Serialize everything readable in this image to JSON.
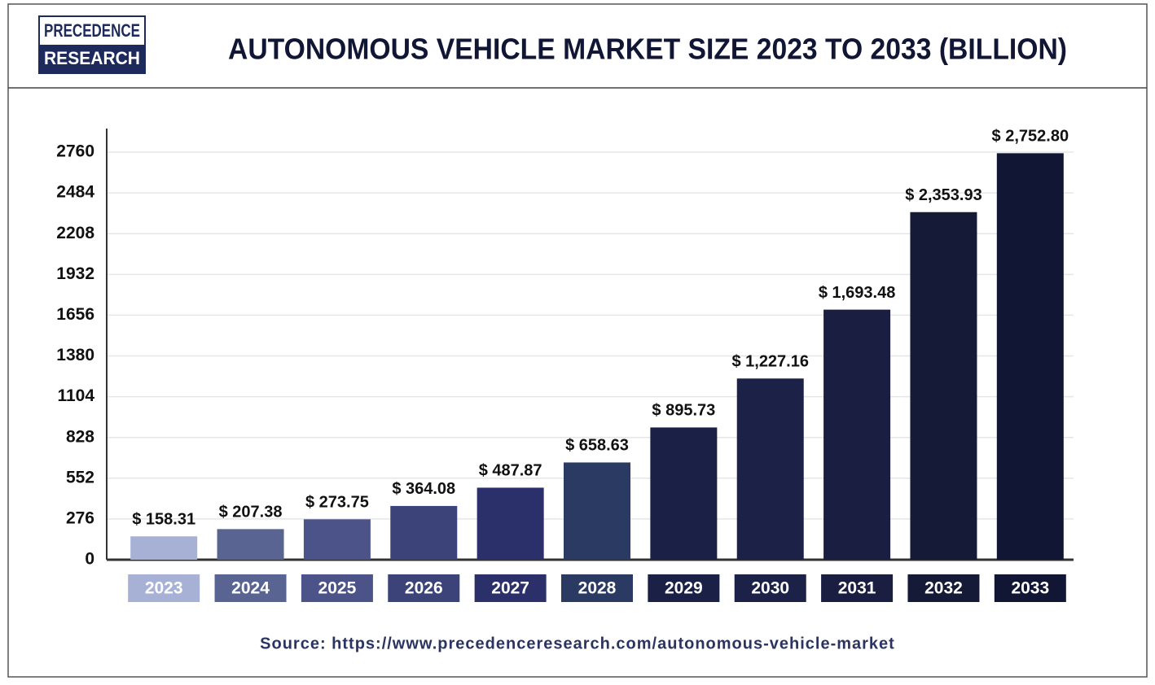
{
  "chart_data": {
    "type": "bar",
    "logo": [
      "PRECEDENCE",
      "RESEARCH"
    ],
    "title": "AUTONOMOUS VEHICLE MARKET SIZE 2023 TO 2033 (BILLION)",
    "categories": [
      "2023",
      "2024",
      "2025",
      "2026",
      "2027",
      "2028",
      "2029",
      "2030",
      "2031",
      "2032",
      "2033"
    ],
    "values": [
      158.31,
      207.38,
      273.75,
      364.08,
      487.87,
      658.63,
      895.73,
      1227.16,
      1693.48,
      2353.93,
      2752.8
    ],
    "value_labels": [
      "$ 158.31",
      "$ 207.38",
      "$ 273.75",
      "$ 364.08",
      "$ 487.87",
      "$ 658.63",
      "$ 895.73",
      "$ 1,227.16",
      "$ 1,693.48",
      "$ 2,353.93",
      "$ 2,752.80"
    ],
    "colors": [
      "#a7b1d6",
      "#5a6492",
      "#4b5389",
      "#3b4378",
      "#2b306b",
      "#2b3a62",
      "#1b2146",
      "#1c2247",
      "#1a1f41",
      "#151a37",
      "#111634"
    ],
    "ylim": [
      0,
      2920
    ],
    "yticks": [
      0,
      276,
      552,
      828,
      1104,
      1380,
      1656,
      1932,
      2208,
      2484,
      2760
    ],
    "grid": true,
    "source": "Source: https://www.precedenceresearch.com/autonomous-vehicle-market"
  }
}
